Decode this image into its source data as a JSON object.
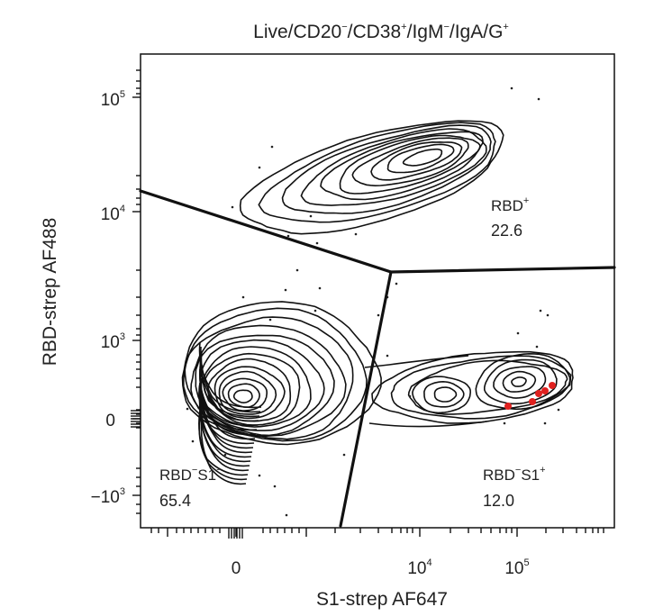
{
  "chart_data": {
    "type": "scatter",
    "plot_style": "contour density plot (flow cytometry, biexponential axes)",
    "title": "Live/CD20⁻/CD38⁺/IgM⁻/IgA/G⁺",
    "title_parts": [
      {
        "text": "Live/CD20",
        "sup": false
      },
      {
        "text": "−",
        "sup": true
      },
      {
        "text": "/CD38",
        "sup": false
      },
      {
        "text": "+",
        "sup": true
      },
      {
        "text": "/IgM",
        "sup": false
      },
      {
        "text": "−",
        "sup": true
      },
      {
        "text": "/IgA/G",
        "sup": false
      },
      {
        "text": "+",
        "sup": true
      }
    ],
    "xlabel": "S1-strep AF647",
    "ylabel": "RBD-strep AF488",
    "x_ticks": [
      {
        "value": 0,
        "base": "0",
        "exp": ""
      },
      {
        "value": 10000,
        "base": "10",
        "exp": "4"
      },
      {
        "value": 100000,
        "base": "10",
        "exp": "5"
      }
    ],
    "y_ticks": [
      {
        "value": 100000,
        "base": "10",
        "exp": "5"
      },
      {
        "value": 10000,
        "base": "10",
        "exp": "4"
      },
      {
        "value": 1000,
        "base": "10",
        "exp": "3"
      },
      {
        "value": 0,
        "base": "0",
        "exp": ""
      },
      {
        "value": -1000,
        "base": "−10",
        "exp": "3"
      }
    ],
    "gates": [
      {
        "name": "RBD",
        "name_sup": "+",
        "name_parts": [
          {
            "text": "RBD",
            "sup": false
          },
          {
            "text": "+",
            "sup": true
          }
        ],
        "percent": "22.6"
      },
      {
        "name": "RBD⁻S1⁻",
        "name_parts": [
          {
            "text": "RBD",
            "sup": false
          },
          {
            "text": "−",
            "sup": true
          },
          {
            "text": "S1",
            "sup": false
          },
          {
            "text": "−",
            "sup": true
          }
        ],
        "percent": "65.4"
      },
      {
        "name": "RBD⁻S1⁺",
        "name_parts": [
          {
            "text": "RBD",
            "sup": false
          },
          {
            "text": "−",
            "sup": true
          },
          {
            "text": "S1",
            "sup": false
          },
          {
            "text": "+",
            "sup": true
          }
        ],
        "percent": "12.0"
      }
    ],
    "highlighted_events": {
      "count": 5,
      "color": "#e0211f",
      "approx_x_range": [
        70000,
        160000
      ],
      "approx_y_range": [
        0,
        300
      ]
    },
    "colors": {
      "contour": "#111111",
      "highlight": "#e0211f"
    }
  }
}
